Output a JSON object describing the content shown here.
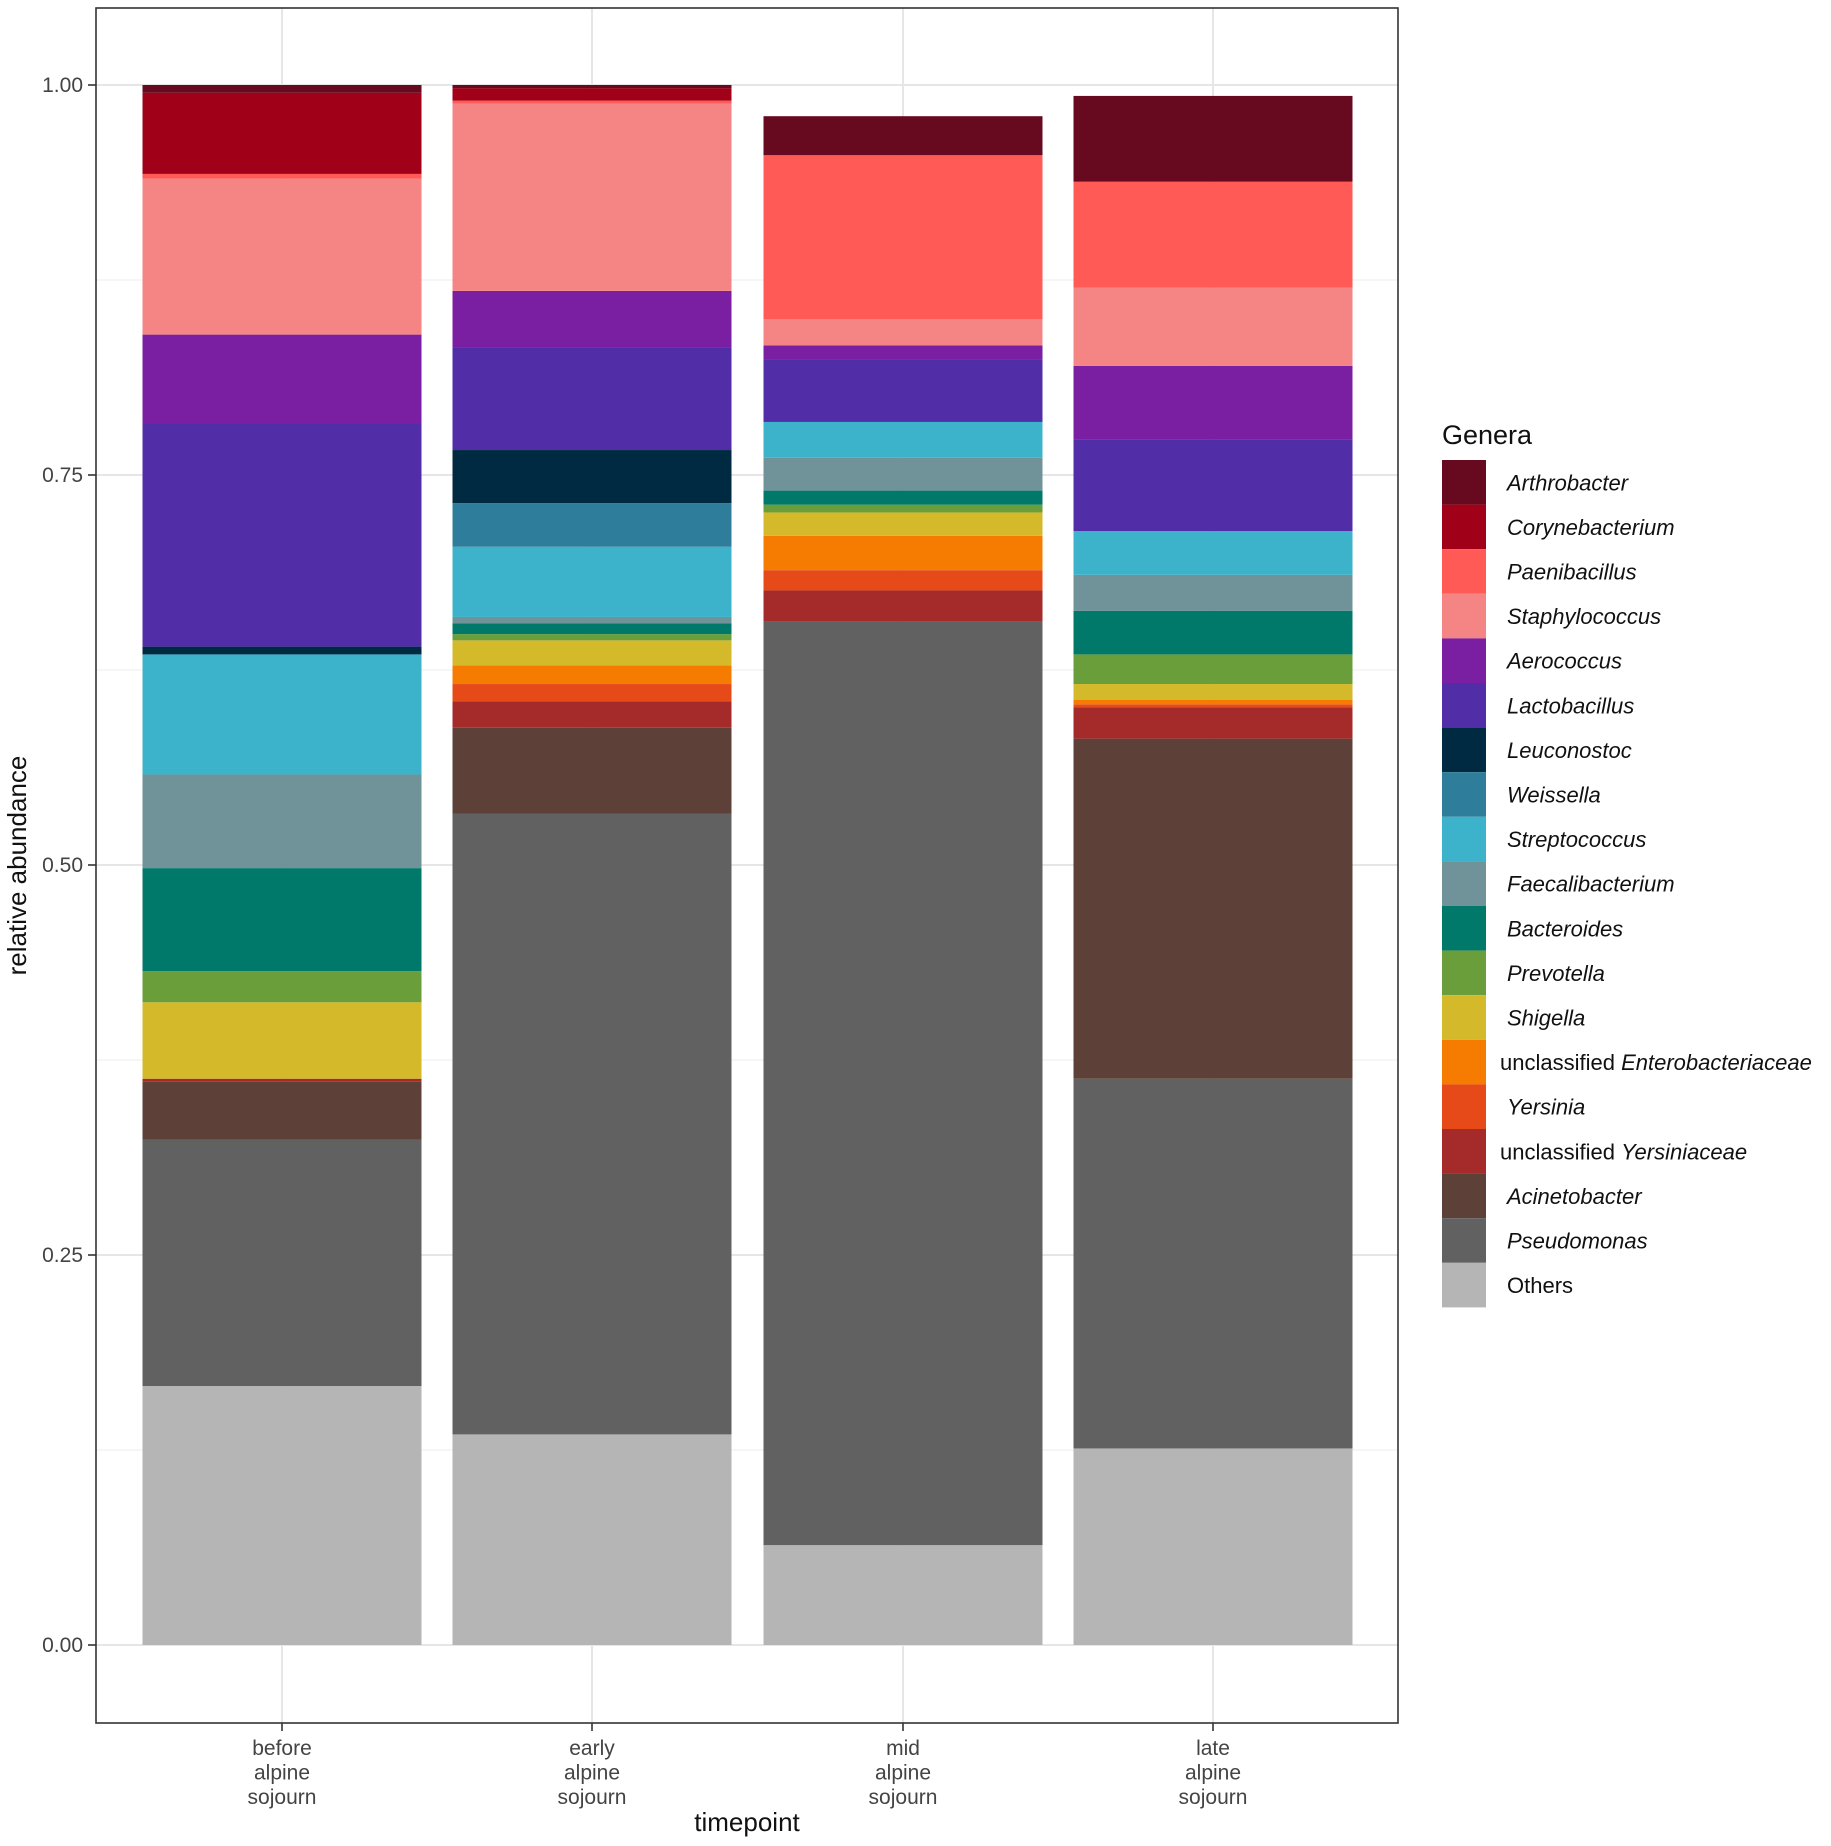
{
  "chart_data": {
    "type": "bar",
    "subtype": "stacked-100",
    "xlabel": "timepoint",
    "ylabel": "relative abundance",
    "ylim": [
      0,
      1
    ],
    "yticks": [
      "0.00",
      "0.25",
      "0.50",
      "0.75",
      "1.00"
    ],
    "ytick_values": [
      0,
      0.25,
      0.5,
      0.75,
      1.0
    ],
    "grid": true,
    "legend_title": "Genera",
    "legend_position": "right",
    "categories": [
      [
        "before",
        "alpine",
        "sojourn"
      ],
      [
        "early",
        "alpine",
        "sojourn"
      ],
      [
        "mid",
        "alpine",
        "sojourn"
      ],
      [
        "late",
        "alpine",
        "sojourn"
      ]
    ],
    "series": [
      {
        "name": "Arthrobacter",
        "prefix": "",
        "italic": "Arthrobacter",
        "color": "#67091f",
        "values": [
          0.005,
          0.002,
          0.025,
          0.055
        ]
      },
      {
        "name": "Corynebacterium",
        "prefix": "",
        "italic": "Corynebacterium",
        "color": "#a00018",
        "values": [
          0.052,
          0.008,
          0.0,
          0.0
        ]
      },
      {
        "name": "Paenibacillus",
        "prefix": "",
        "italic": "Paenibacillus",
        "color": "#ff5a55",
        "values": [
          0.003,
          0.002,
          0.105,
          0.068
        ]
      },
      {
        "name": "Staphylococcus",
        "prefix": "",
        "italic": "Staphylococcus",
        "color": "#f58585",
        "values": [
          0.1,
          0.12,
          0.017,
          0.05
        ]
      },
      {
        "name": "Aerococcus",
        "prefix": "",
        "italic": "Aerococcus",
        "color": "#7b1fa2",
        "values": [
          0.057,
          0.036,
          0.009,
          0.047
        ]
      },
      {
        "name": "Lactobacillus",
        "prefix": "",
        "italic": "Lactobacillus",
        "color": "#512da8",
        "values": [
          0.143,
          0.066,
          0.04,
          0.059
        ]
      },
      {
        "name": "Leuconostoc",
        "prefix": "",
        "italic": "Leuconostoc",
        "color": "#002a42",
        "values": [
          0.005,
          0.034,
          0.0,
          0.0
        ]
      },
      {
        "name": "Weissella",
        "prefix": "",
        "italic": "Weissella",
        "color": "#2e7e9b",
        "values": [
          0.0,
          0.028,
          0.0,
          0.0
        ]
      },
      {
        "name": "Streptococcus",
        "prefix": "",
        "italic": "Streptococcus",
        "color": "#3db3cb",
        "values": [
          0.077,
          0.045,
          0.023,
          0.028
        ]
      },
      {
        "name": "Faecalibacterium",
        "prefix": "",
        "italic": "Faecalibacterium",
        "color": "#70939a",
        "values": [
          0.06,
          0.004,
          0.021,
          0.023
        ]
      },
      {
        "name": "Bacteroides",
        "prefix": "",
        "italic": "Bacteroides",
        "color": "#00796b",
        "values": [
          0.066,
          0.007,
          0.009,
          0.028
        ]
      },
      {
        "name": "Prevotella",
        "prefix": "",
        "italic": "Prevotella",
        "color": "#6a9e3a",
        "values": [
          0.02,
          0.004,
          0.005,
          0.019
        ]
      },
      {
        "name": "Shigella",
        "prefix": "",
        "italic": "Shigella",
        "color": "#d4b92a",
        "values": [
          0.049,
          0.016,
          0.015,
          0.01
        ]
      },
      {
        "name": "unclassified Enterobacteriaceae",
        "prefix": "unclassified ",
        "italic": "Enterobacteriaceae",
        "color": "#f57c00",
        "values": [
          0.0,
          0.012,
          0.022,
          0.003
        ]
      },
      {
        "name": "Yersinia",
        "prefix": "",
        "italic": "Yersinia",
        "color": "#e64a19",
        "values": [
          0.0,
          0.011,
          0.013,
          0.002
        ]
      },
      {
        "name": "unclassified Yersiniaceae",
        "prefix": "unclassified ",
        "italic": "Yersiniaceae",
        "color": "#a52a2a",
        "values": [
          0.002,
          0.017,
          0.02,
          0.02
        ]
      },
      {
        "name": "Acinetobacter",
        "prefix": "",
        "italic": "Acinetobacter",
        "color": "#5d4037",
        "values": [
          0.037,
          0.055,
          0.0,
          0.218
        ]
      },
      {
        "name": "Pseudomonas",
        "prefix": "",
        "italic": "Pseudomonas",
        "color": "#616161",
        "values": [
          0.158,
          0.398,
          0.592,
          0.237
        ]
      },
      {
        "name": "Others",
        "prefix": "Others",
        "italic": "",
        "color": "#b5b5b5",
        "values": [
          0.166,
          0.135,
          0.064,
          0.126
        ]
      }
    ]
  }
}
